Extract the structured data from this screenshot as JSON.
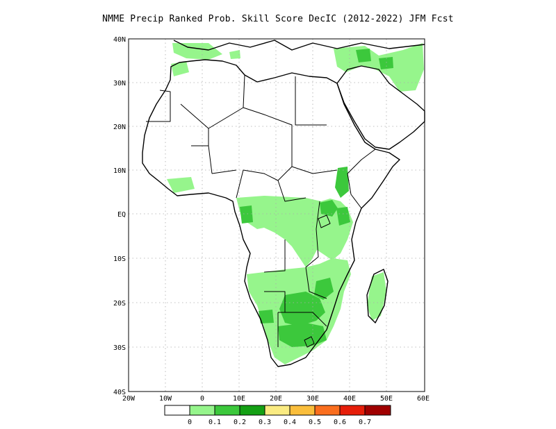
{
  "title": "NMME Precip Ranked Prob. Skill Score DecIC (2012-2022) JFM Fcst",
  "map": {
    "lon_labels": [
      "20W",
      "10W",
      "0",
      "10E",
      "20E",
      "30E",
      "40E",
      "50E",
      "60E"
    ],
    "lat_labels": [
      "40N",
      "30N",
      "20N",
      "10N",
      "EQ",
      "10S",
      "20S",
      "30S",
      "40S"
    ]
  },
  "colorbar": {
    "labels": [
      "0",
      "0.1",
      "0.2",
      "0.3",
      "0.4",
      "0.5",
      "0.6",
      "0.7"
    ],
    "colors": [
      "#ffffff",
      "#96f58c",
      "#3cc83c",
      "#14a014",
      "#faeb82",
      "#fabe3c",
      "#fa6e1e",
      "#e61e0a",
      "#a00000"
    ]
  },
  "map_colors": {
    "skill_low": "#96f58c",
    "skill_mid": "#3cc83c",
    "grid": "#aaaaaa"
  }
}
